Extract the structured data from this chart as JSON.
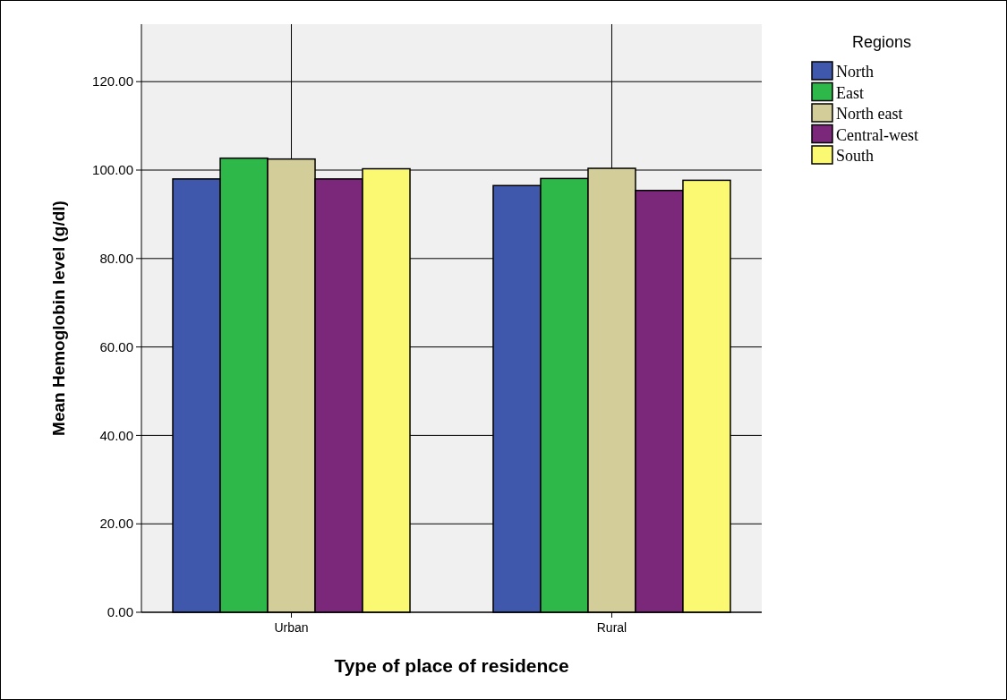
{
  "chart_data": {
    "type": "bar",
    "xlabel": "Type of place of residence",
    "ylabel": "Mean Hemoglobin level (g/dl)",
    "legend_title": "Regions",
    "categories": [
      "Urban",
      "Rural"
    ],
    "series": [
      {
        "name": "North",
        "color": "#3f58ab",
        "values": [
          98.0,
          96.5
        ]
      },
      {
        "name": "East",
        "color": "#2fb84a",
        "values": [
          102.7,
          98.1
        ]
      },
      {
        "name": "North east",
        "color": "#d3ce99",
        "values": [
          102.5,
          100.4
        ]
      },
      {
        "name": "Central-west",
        "color": "#7b287b",
        "values": [
          98.0,
          95.4
        ]
      },
      {
        "name": "South",
        "color": "#fbf872",
        "values": [
          100.3,
          97.7
        ]
      }
    ],
    "ylim": [
      0,
      133
    ],
    "yticks": [
      {
        "value": 0,
        "label": "0.00"
      },
      {
        "value": 20,
        "label": "20.00"
      },
      {
        "value": 40,
        "label": "40.00"
      },
      {
        "value": 60,
        "label": "60.00"
      },
      {
        "value": 80,
        "label": "80.00"
      },
      {
        "value": 100,
        "label": "100.00"
      },
      {
        "value": 120,
        "label": "120.00"
      }
    ],
    "grid": true,
    "legend": "right"
  }
}
